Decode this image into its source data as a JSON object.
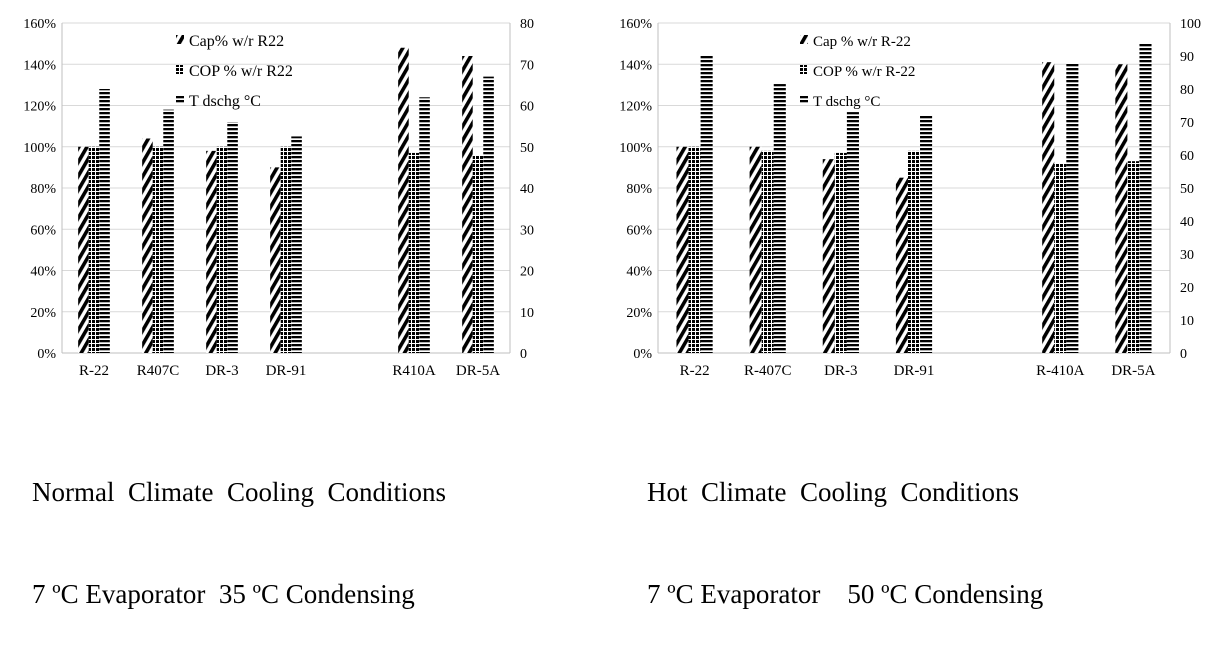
{
  "chart_data": [
    {
      "type": "bar",
      "categories": [
        "R-22",
        "R407C",
        "DR-3",
        "DR-91",
        "",
        "R410A",
        "DR-5A"
      ],
      "series": [
        {
          "name": "Cap% w/r R22",
          "axis": "left",
          "pattern": "diagonal",
          "values": [
            100,
            104,
            98,
            90,
            null,
            148,
            144
          ]
        },
        {
          "name": "COP % w/r R22",
          "axis": "left",
          "pattern": "dots",
          "values": [
            100,
            100,
            100,
            100,
            null,
            97,
            96
          ]
        },
        {
          "name": "T dschg °C",
          "axis": "right",
          "pattern": "horizontal",
          "values": [
            64,
            59,
            56,
            52.5,
            null,
            62,
            67
          ]
        }
      ],
      "ylim": [
        0,
        160
      ],
      "yticks": [
        "0%",
        "20%",
        "40%",
        "60%",
        "80%",
        "100%",
        "120%",
        "140%",
        "160%"
      ],
      "y2lim": [
        0,
        80
      ],
      "y2ticks": [
        "0",
        "10",
        "20",
        "30",
        "40",
        "50",
        "60",
        "70",
        "80"
      ],
      "grid": true,
      "legend": "top-center",
      "caption_lines": [
        "Normal  Climate  Cooling  Conditions",
        "7 ºC Evaporator  35 ºC Condensing"
      ]
    },
    {
      "type": "bar",
      "categories": [
        "R-22",
        "R-407C",
        "DR-3",
        "DR-91",
        "",
        "R-410A",
        "DR-5A"
      ],
      "series": [
        {
          "name": "Cap % w/r R-22",
          "axis": "left",
          "pattern": "diagonal",
          "values": [
            100,
            100,
            94,
            85,
            null,
            141,
            140
          ]
        },
        {
          "name": "COP % w/r R-22",
          "axis": "left",
          "pattern": "dots",
          "values": [
            100,
            98,
            97,
            98,
            null,
            92,
            93
          ]
        },
        {
          "name": "T dschg °C",
          "axis": "right",
          "pattern": "horizontal",
          "values": [
            90,
            81.5,
            73,
            72,
            null,
            88,
            94
          ]
        }
      ],
      "ylim": [
        0,
        160
      ],
      "yticks": [
        "0%",
        "20%",
        "40%",
        "60%",
        "80%",
        "100%",
        "120%",
        "140%",
        "160%"
      ],
      "y2lim": [
        0,
        100
      ],
      "y2ticks": [
        "0",
        "10",
        "20",
        "30",
        "40",
        "50",
        "60",
        "70",
        "80",
        "90",
        "100"
      ],
      "grid": true,
      "legend": "top-center",
      "caption_lines": [
        "Hot  Climate  Cooling  Conditions",
        "7 ºC Evaporator    50 ºC Condensing"
      ]
    }
  ]
}
